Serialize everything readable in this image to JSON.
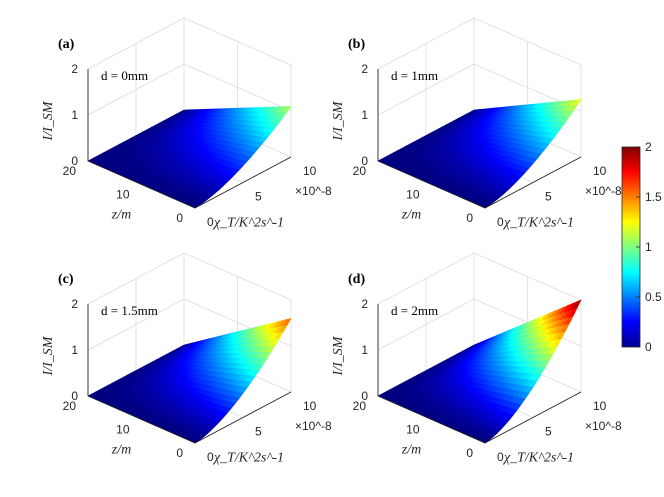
{
  "colors": {
    "axis": "#262626",
    "grid": "#dcdcdc"
  },
  "chart_data": [
    {
      "type": "surface",
      "panel_label": "(a)",
      "annotation": "d = 0mm",
      "d_mm": 0,
      "peak_value": 1.1,
      "zlabel": "I/I_SM",
      "ylabel": "z/m",
      "xlabel": "χ_T/K^2s^-1",
      "x_range": [
        0,
        10
      ],
      "x_exponent": "×10^-8",
      "x_ticks": [
        "0",
        "5",
        "10"
      ],
      "y_range": [
        0,
        20
      ],
      "y_ticks": [
        "0",
        "10",
        "20"
      ],
      "zlim": [
        0,
        2
      ],
      "z_ticks": [
        "0",
        "1",
        "2"
      ]
    },
    {
      "type": "surface",
      "panel_label": "(b)",
      "annotation": "d = 1mm",
      "d_mm": 1,
      "peak_value": 1.25,
      "zlabel": "I/I_SM",
      "ylabel": "z/m",
      "xlabel": "χ_T/K^2s^-1",
      "x_range": [
        0,
        10
      ],
      "x_exponent": "×10^-8",
      "x_ticks": [
        "0",
        "5",
        "10"
      ],
      "y_range": [
        0,
        20
      ],
      "y_ticks": [
        "0",
        "10",
        "20"
      ],
      "zlim": [
        0,
        2
      ],
      "z_ticks": [
        "0",
        "1",
        "2"
      ]
    },
    {
      "type": "surface",
      "panel_label": "(c)",
      "annotation": "d = 1.5mm",
      "d_mm": 1.5,
      "peak_value": 1.6,
      "zlabel": "I/I_SM",
      "ylabel": "z/m",
      "xlabel": "χ_T/K^2s^-1",
      "x_range": [
        0,
        10
      ],
      "x_exponent": "×10^-8",
      "x_ticks": [
        "0",
        "5",
        "10"
      ],
      "y_range": [
        0,
        20
      ],
      "y_ticks": [
        "0",
        "10",
        "20"
      ],
      "zlim": [
        0,
        2
      ],
      "z_ticks": [
        "0",
        "1",
        "2"
      ]
    },
    {
      "type": "surface",
      "panel_label": "(d)",
      "annotation": "d = 2mm",
      "d_mm": 2,
      "peak_value": 2.0,
      "zlabel": "I/I_SM",
      "ylabel": "z/m",
      "xlabel": "χ_T/K^2s^-1",
      "x_range": [
        0,
        10
      ],
      "x_exponent": "×10^-8",
      "x_ticks": [
        "0",
        "5",
        "10"
      ],
      "y_range": [
        0,
        20
      ],
      "y_ticks": [
        "0",
        "10",
        "20"
      ],
      "zlim": [
        0,
        2
      ],
      "z_ticks": [
        "0",
        "1",
        "2"
      ]
    }
  ],
  "colorbar": {
    "colormap": "jet",
    "range": [
      0,
      2
    ],
    "ticks": [
      "0",
      "0.5",
      "1",
      "1.5",
      "2"
    ]
  }
}
